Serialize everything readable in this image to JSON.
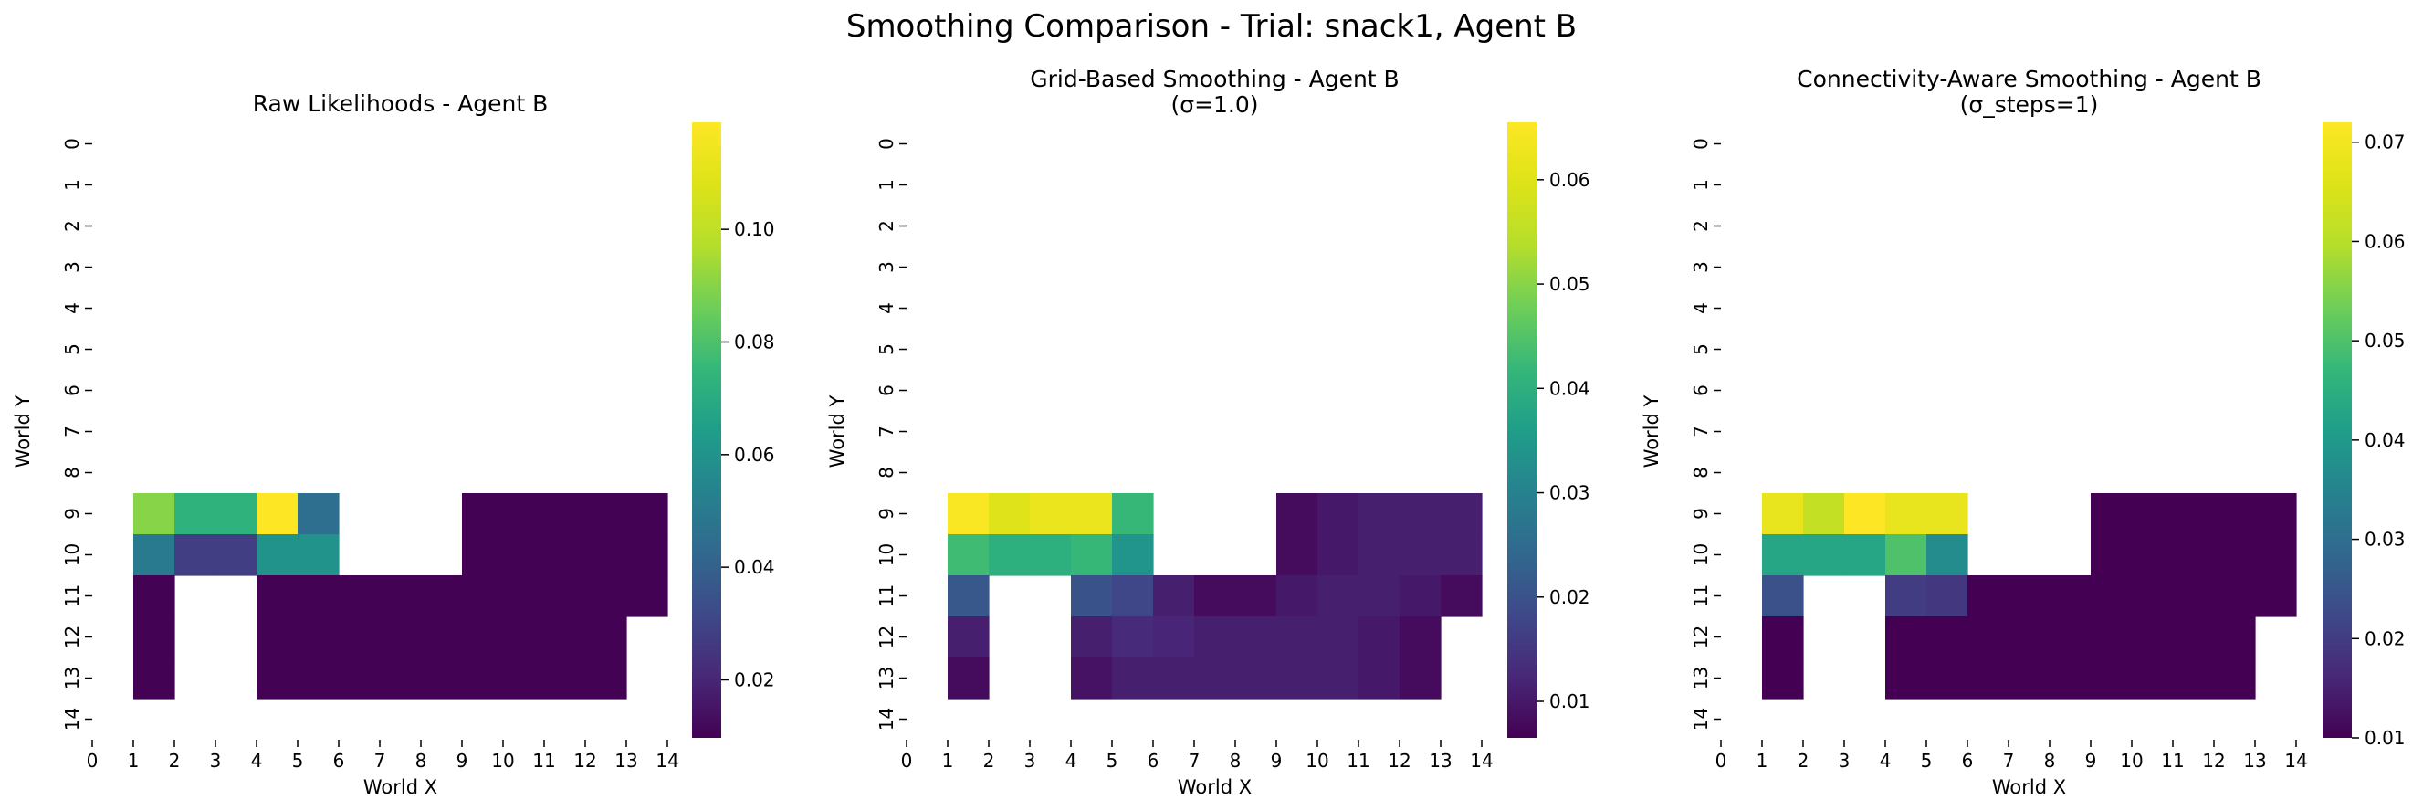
{
  "figure": {
    "title": "Smoothing Comparison - Trial: snack1, Agent B"
  },
  "chart_data": [
    {
      "type": "heatmap",
      "title": "Raw Likelihoods - Agent B",
      "subtitle": "",
      "xlabel": "World X",
      "ylabel": "World Y",
      "x_ticks": [
        "0",
        "1",
        "2",
        "3",
        "4",
        "5",
        "6",
        "7",
        "8",
        "9",
        "10",
        "11",
        "12",
        "13",
        "14"
      ],
      "y_ticks": [
        "0",
        "1",
        "2",
        "3",
        "4",
        "5",
        "6",
        "7",
        "8",
        "9",
        "10",
        "11",
        "12",
        "13",
        "14"
      ],
      "colormap": "viridis",
      "colorbar": {
        "min": 0.0097,
        "max": 0.119,
        "ticks": [
          0.02,
          0.04,
          0.06,
          0.08,
          0.1
        ],
        "tick_labels": [
          "0.02",
          "0.04",
          "0.06",
          "0.08",
          "0.10"
        ]
      },
      "cells": [
        [
          9,
          1,
          0.09
        ],
        [
          9,
          2,
          0.073
        ],
        [
          9,
          3,
          0.073
        ],
        [
          9,
          4,
          0.119
        ],
        [
          9,
          5,
          0.045
        ],
        [
          9,
          9,
          0.01
        ],
        [
          9,
          10,
          0.01
        ],
        [
          9,
          11,
          0.01
        ],
        [
          9,
          12,
          0.01
        ],
        [
          9,
          13,
          0.01
        ],
        [
          10,
          1,
          0.05
        ],
        [
          10,
          2,
          0.028
        ],
        [
          10,
          3,
          0.028
        ],
        [
          10,
          4,
          0.06
        ],
        [
          10,
          5,
          0.06
        ],
        [
          10,
          9,
          0.01
        ],
        [
          10,
          10,
          0.01
        ],
        [
          10,
          11,
          0.01
        ],
        [
          10,
          12,
          0.01
        ],
        [
          10,
          13,
          0.01
        ],
        [
          11,
          1,
          0.01
        ],
        [
          11,
          4,
          0.01
        ],
        [
          11,
          5,
          0.01
        ],
        [
          11,
          6,
          0.01
        ],
        [
          11,
          7,
          0.01
        ],
        [
          11,
          8,
          0.01
        ],
        [
          11,
          9,
          0.01
        ],
        [
          11,
          10,
          0.01
        ],
        [
          11,
          11,
          0.01
        ],
        [
          11,
          12,
          0.01
        ],
        [
          11,
          13,
          0.01
        ],
        [
          12,
          1,
          0.01
        ],
        [
          12,
          4,
          0.01
        ],
        [
          12,
          5,
          0.01
        ],
        [
          12,
          6,
          0.01
        ],
        [
          12,
          7,
          0.01
        ],
        [
          12,
          8,
          0.01
        ],
        [
          12,
          9,
          0.01
        ],
        [
          12,
          10,
          0.01
        ],
        [
          12,
          11,
          0.01
        ],
        [
          12,
          12,
          0.01
        ],
        [
          13,
          1,
          0.01
        ],
        [
          13,
          4,
          0.01
        ],
        [
          13,
          5,
          0.01
        ],
        [
          13,
          6,
          0.01
        ],
        [
          13,
          7,
          0.01
        ],
        [
          13,
          8,
          0.01
        ],
        [
          13,
          9,
          0.01
        ],
        [
          13,
          10,
          0.01
        ],
        [
          13,
          11,
          0.01
        ],
        [
          13,
          12,
          0.01
        ]
      ]
    },
    {
      "type": "heatmap",
      "title": "Grid-Based Smoothing - Agent B",
      "subtitle": "(σ=1.0)",
      "xlabel": "World X",
      "ylabel": "World Y",
      "x_ticks": [
        "0",
        "1",
        "2",
        "3",
        "4",
        "5",
        "6",
        "7",
        "8",
        "9",
        "10",
        "11",
        "12",
        "13",
        "14"
      ],
      "y_ticks": [
        "0",
        "1",
        "2",
        "3",
        "4",
        "5",
        "6",
        "7",
        "8",
        "9",
        "10",
        "11",
        "12",
        "13",
        "14"
      ],
      "colormap": "viridis",
      "colorbar": {
        "min": 0.0065,
        "max": 0.0655,
        "ticks": [
          0.01,
          0.02,
          0.03,
          0.04,
          0.05,
          0.06
        ],
        "tick_labels": [
          "0.01",
          "0.02",
          "0.03",
          "0.04",
          "0.05",
          "0.06"
        ]
      },
      "cells": [
        [
          9,
          1,
          0.065
        ],
        [
          9,
          2,
          0.06
        ],
        [
          9,
          3,
          0.062
        ],
        [
          9,
          4,
          0.062
        ],
        [
          9,
          5,
          0.042
        ],
        [
          9,
          9,
          0.008
        ],
        [
          9,
          10,
          0.01
        ],
        [
          9,
          11,
          0.011
        ],
        [
          9,
          12,
          0.011
        ],
        [
          9,
          13,
          0.011
        ],
        [
          10,
          1,
          0.043
        ],
        [
          10,
          2,
          0.04
        ],
        [
          10,
          3,
          0.04
        ],
        [
          10,
          4,
          0.042
        ],
        [
          10,
          5,
          0.034
        ],
        [
          10,
          9,
          0.008
        ],
        [
          10,
          10,
          0.01
        ],
        [
          10,
          11,
          0.011
        ],
        [
          10,
          12,
          0.011
        ],
        [
          10,
          13,
          0.011
        ],
        [
          11,
          1,
          0.021
        ],
        [
          11,
          4,
          0.02
        ],
        [
          11,
          5,
          0.018
        ],
        [
          11,
          6,
          0.011
        ],
        [
          11,
          7,
          0.008
        ],
        [
          11,
          8,
          0.008
        ],
        [
          11,
          9,
          0.01
        ],
        [
          11,
          10,
          0.011
        ],
        [
          11,
          11,
          0.011
        ],
        [
          11,
          12,
          0.01
        ],
        [
          11,
          13,
          0.008
        ],
        [
          12,
          1,
          0.011
        ],
        [
          12,
          4,
          0.011
        ],
        [
          12,
          5,
          0.013
        ],
        [
          12,
          6,
          0.012
        ],
        [
          12,
          7,
          0.011
        ],
        [
          12,
          8,
          0.011
        ],
        [
          12,
          9,
          0.011
        ],
        [
          12,
          10,
          0.011
        ],
        [
          12,
          11,
          0.01
        ],
        [
          12,
          12,
          0.008
        ],
        [
          13,
          1,
          0.008
        ],
        [
          13,
          4,
          0.009
        ],
        [
          13,
          5,
          0.011
        ],
        [
          13,
          6,
          0.011
        ],
        [
          13,
          7,
          0.011
        ],
        [
          13,
          8,
          0.011
        ],
        [
          13,
          9,
          0.011
        ],
        [
          13,
          10,
          0.011
        ],
        [
          13,
          11,
          0.01
        ],
        [
          13,
          12,
          0.008
        ]
      ]
    },
    {
      "type": "heatmap",
      "title": "Connectivity-Aware Smoothing - Agent B",
      "subtitle": "(σ_steps=1)",
      "xlabel": "World X",
      "ylabel": "World Y",
      "x_ticks": [
        "0",
        "1",
        "2",
        "3",
        "4",
        "5",
        "6",
        "7",
        "8",
        "9",
        "10",
        "11",
        "12",
        "13",
        "14"
      ],
      "y_ticks": [
        "0",
        "1",
        "2",
        "3",
        "4",
        "5",
        "6",
        "7",
        "8",
        "9",
        "10",
        "11",
        "12",
        "13",
        "14"
      ],
      "colormap": "viridis",
      "colorbar": {
        "min": 0.01,
        "max": 0.072,
        "ticks": [
          0.01,
          0.02,
          0.03,
          0.04,
          0.05,
          0.06,
          0.07
        ],
        "tick_labels": [
          "0.01",
          "0.02",
          "0.03",
          "0.04",
          "0.05",
          "0.06",
          "0.07"
        ]
      },
      "cells": [
        [
          9,
          1,
          0.068
        ],
        [
          9,
          2,
          0.062
        ],
        [
          9,
          3,
          0.072
        ],
        [
          9,
          4,
          0.068
        ],
        [
          9,
          5,
          0.068
        ],
        [
          9,
          9,
          0.01
        ],
        [
          9,
          10,
          0.01
        ],
        [
          9,
          11,
          0.01
        ],
        [
          9,
          12,
          0.01
        ],
        [
          9,
          13,
          0.01
        ],
        [
          10,
          1,
          0.043
        ],
        [
          10,
          2,
          0.043
        ],
        [
          10,
          3,
          0.043
        ],
        [
          10,
          4,
          0.05
        ],
        [
          10,
          5,
          0.037
        ],
        [
          10,
          9,
          0.01
        ],
        [
          10,
          10,
          0.01
        ],
        [
          10,
          11,
          0.01
        ],
        [
          10,
          12,
          0.01
        ],
        [
          10,
          13,
          0.01
        ],
        [
          11,
          1,
          0.024
        ],
        [
          11,
          4,
          0.02
        ],
        [
          11,
          5,
          0.019
        ],
        [
          11,
          6,
          0.01
        ],
        [
          11,
          7,
          0.01
        ],
        [
          11,
          8,
          0.01
        ],
        [
          11,
          9,
          0.01
        ],
        [
          11,
          10,
          0.01
        ],
        [
          11,
          11,
          0.01
        ],
        [
          11,
          12,
          0.01
        ],
        [
          11,
          13,
          0.01
        ],
        [
          12,
          1,
          0.01
        ],
        [
          12,
          4,
          0.01
        ],
        [
          12,
          5,
          0.01
        ],
        [
          12,
          6,
          0.01
        ],
        [
          12,
          7,
          0.01
        ],
        [
          12,
          8,
          0.01
        ],
        [
          12,
          9,
          0.01
        ],
        [
          12,
          10,
          0.01
        ],
        [
          12,
          11,
          0.01
        ],
        [
          12,
          12,
          0.01
        ],
        [
          13,
          1,
          0.01
        ],
        [
          13,
          4,
          0.01
        ],
        [
          13,
          5,
          0.01
        ],
        [
          13,
          6,
          0.01
        ],
        [
          13,
          7,
          0.01
        ],
        [
          13,
          8,
          0.01
        ],
        [
          13,
          9,
          0.01
        ],
        [
          13,
          10,
          0.01
        ],
        [
          13,
          11,
          0.01
        ],
        [
          13,
          12,
          0.01
        ]
      ]
    }
  ]
}
